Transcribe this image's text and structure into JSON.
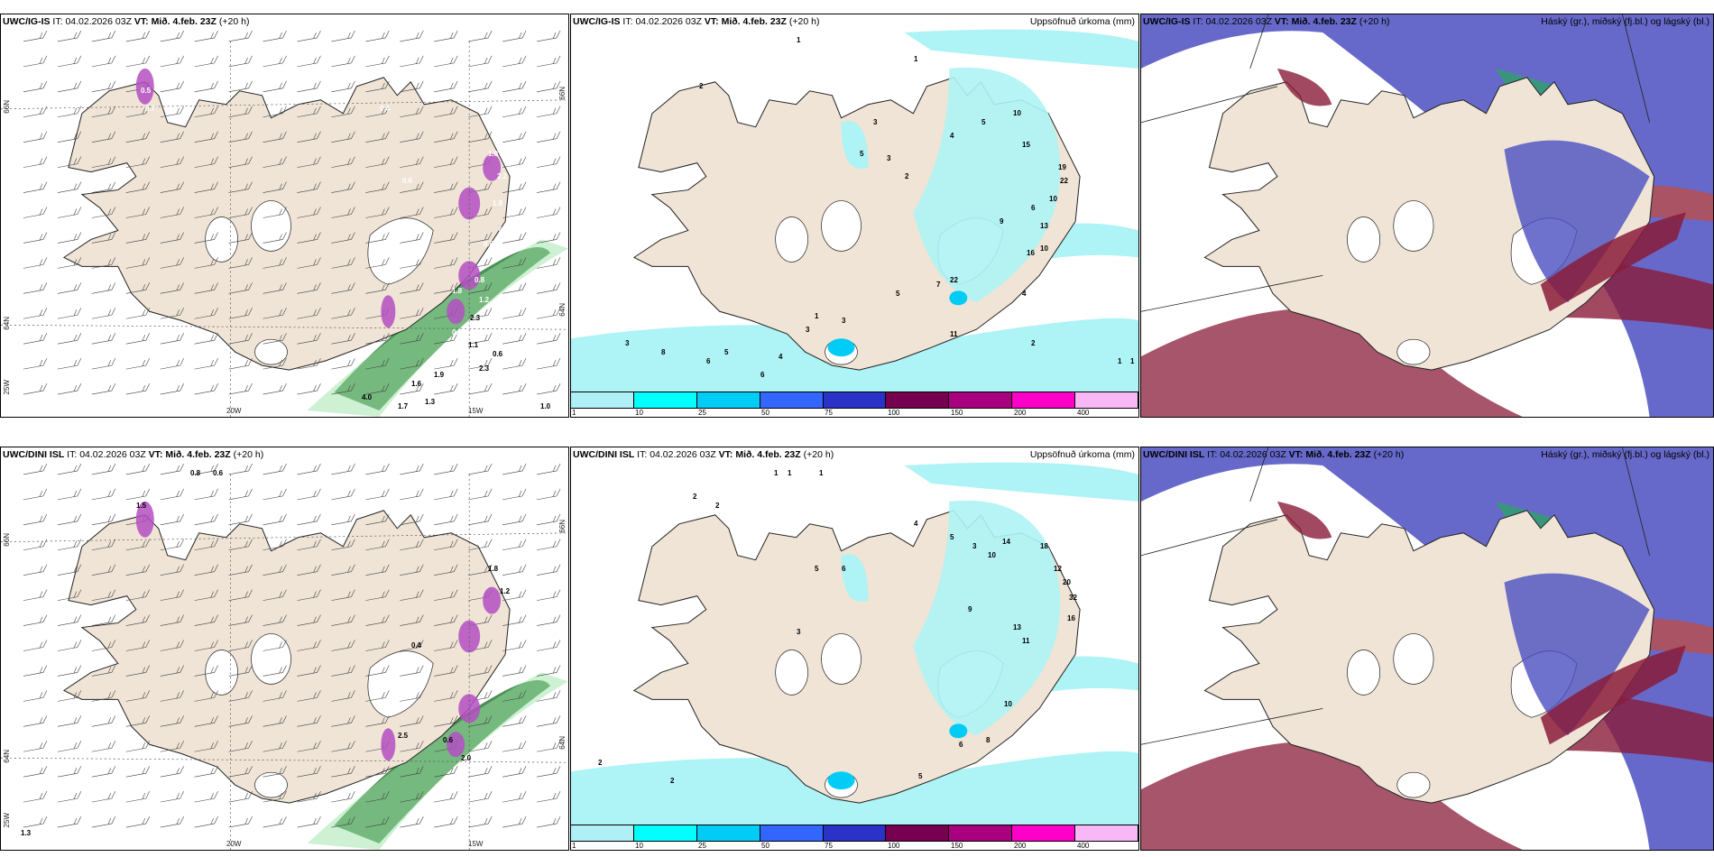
{
  "panels": [
    {
      "model": "UWC/IG-IS",
      "it_label": "IT:",
      "it": "04.02.2026 03Z",
      "vt_label": "VT:",
      "vt": "Mið. 4.feb. 23Z",
      "lead": "(+20 h)",
      "title_right": ""
    },
    {
      "model": "UWC/IG-IS",
      "it_label": "IT:",
      "it": "04.02.2026 03Z",
      "vt_label": "VT:",
      "vt": "Mið. 4.feb. 23Z",
      "lead": "(+20 h)",
      "title_right": "Uppsöfnuð úrkoma (mm)"
    },
    {
      "model": "UWC/IG-IS",
      "it_label": "IT:",
      "it": "04.02.2026 03Z",
      "vt_label": "VT:",
      "vt": "Mið. 4.feb. 23Z",
      "lead": "(+20 h)",
      "title_right": "Háský (gr.), miðský (fj.bl.) og lágský (bl.)"
    },
    {
      "model": "UWC/DINI ISL",
      "it_label": "IT:",
      "it": "04.02.2026 03Z",
      "vt_label": "VT:",
      "vt": "Mið. 4.feb. 23Z",
      "lead": "(+20 h)",
      "title_right": ""
    },
    {
      "model": "UWC/DINI ISL",
      "it_label": "IT:",
      "it": "04.02.2026 03Z",
      "vt_label": "VT:",
      "vt": "Mið. 4.feb. 23Z",
      "lead": "(+20 h)",
      "title_right": "Uppsöfnuð úrkoma (mm)"
    },
    {
      "model": "UWC/DINI ISL",
      "it_label": "IT:",
      "it": "04.02.2026 03Z",
      "vt_label": "VT:",
      "vt": "Mið. 4.feb. 23Z",
      "lead": "(+20 h)",
      "title_right": "Háský (gr.), miðský (fj.bl.) og lágský (bl.)"
    }
  ],
  "axes": {
    "lat66": "66N",
    "lat64": "64N",
    "lon25": "25W",
    "lon20": "20W",
    "lon15": "15W"
  },
  "legend": {
    "labels": [
      "1",
      "10",
      "25",
      "50",
      "75",
      "100",
      "150",
      "200",
      "400"
    ],
    "colors": [
      "#aef0f5",
      "#00ffff",
      "#00ccf5",
      "#3366ff",
      "#2a32c8",
      "#780050",
      "#a8007e",
      "#ff00c8",
      "#f7b8f5"
    ]
  },
  "map_labels": {
    "p0": [
      "0.5",
      "0.7",
      "0.4",
      "0.6",
      "1.0",
      "2.2",
      "1.9",
      "0.8",
      "0.6",
      "0.8",
      "1.8",
      "1.2",
      "0.5",
      "2.3",
      "1.1",
      "0.6",
      "2.3",
      "1.9",
      "1.6",
      "1.7",
      "1.3",
      "4.0",
      "1.0"
    ],
    "p1": [
      "1",
      "2",
      "1",
      "3",
      "5",
      "3",
      "2",
      "4",
      "5",
      "10",
      "15",
      "19",
      "22",
      "10",
      "6",
      "13",
      "9",
      "16",
      "10",
      "4",
      "22",
      "7",
      "5",
      "3",
      "3",
      "6",
      "5",
      "6",
      "8",
      "4",
      "11",
      "2",
      "1",
      "3",
      "1",
      "1"
    ],
    "p3": [
      "0.8",
      "0.6",
      "1.5",
      "1.8",
      "1.2",
      "0.4",
      "2.5",
      "0.6",
      "2.0",
      "1.3"
    ],
    "p4": [
      "1",
      "1",
      "1",
      "2",
      "2",
      "5",
      "6",
      "4",
      "5",
      "3",
      "10",
      "14",
      "18",
      "12",
      "20",
      "32",
      "16",
      "11",
      "13",
      "9",
      "3",
      "2",
      "2",
      "10",
      "8",
      "6",
      "5"
    ]
  },
  "colors": {
    "land": "#efe4d6",
    "precip_cyan": "#aef3f5",
    "snow_green": "#2f7a3a",
    "freezing_purple": "#b44fc2",
    "high_cloud": "#2fa06a",
    "mid_cloud": "#4b4fc0",
    "low_cloud": "#8a1c3a"
  }
}
